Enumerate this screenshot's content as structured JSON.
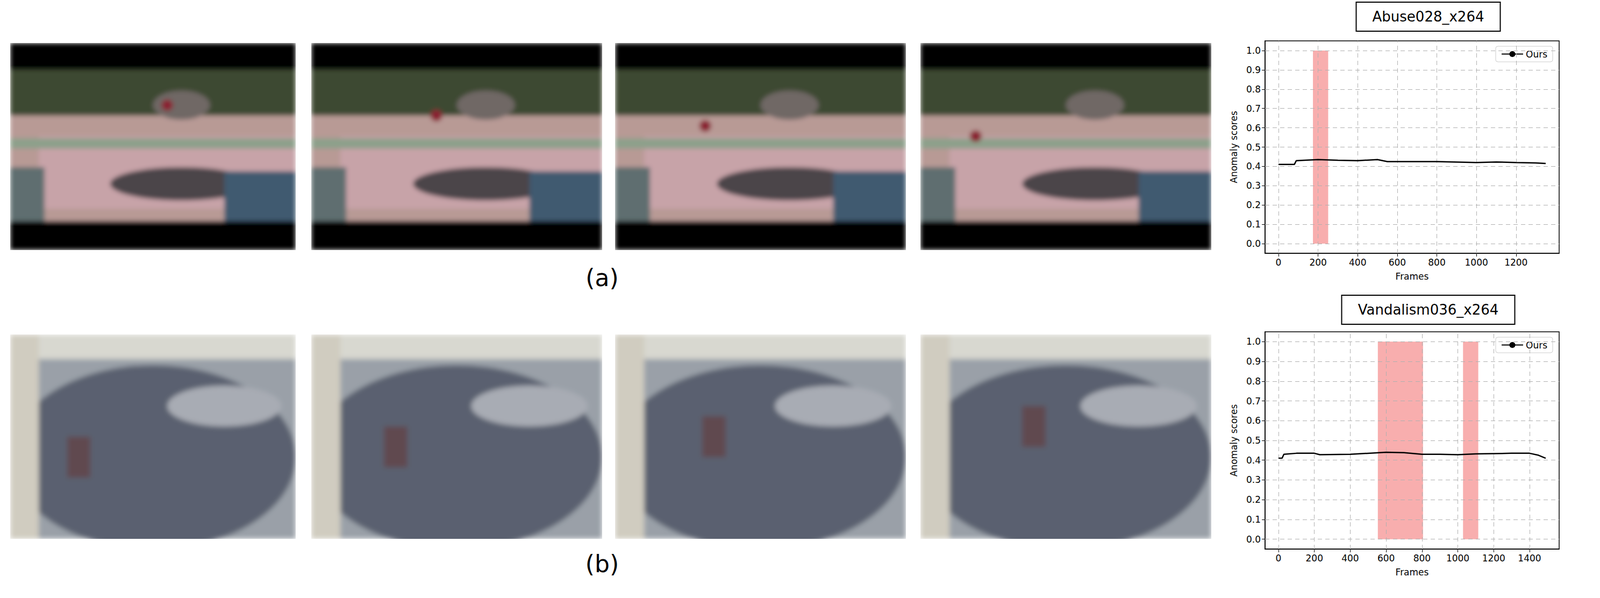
{
  "panel_labels": [
    "(a)",
    "(b)"
  ],
  "chart_data": [
    {
      "type": "line",
      "title": "Abuse028_x264",
      "x_label": "Frames",
      "y_label": "Anomaly scores",
      "x": [
        0,
        80,
        90,
        200,
        300,
        400,
        500,
        550,
        800,
        1000,
        1100,
        1200,
        1300,
        1350
      ],
      "series": [
        {
          "name": "Ours",
          "color": "#000000",
          "values": [
            0.41,
            0.41,
            0.43,
            0.435,
            0.432,
            0.43,
            0.435,
            0.425,
            0.425,
            0.42,
            0.423,
            0.42,
            0.418,
            0.415
          ]
        }
      ],
      "anomaly_intervals": [
        {
          "start": 174,
          "end": 251,
          "low": 0,
          "high": 1
        }
      ],
      "xlim": [
        -68,
        1418
      ],
      "xticks": [
        0,
        200,
        400,
        600,
        800,
        1000,
        1200
      ],
      "ylim": [
        -0.05,
        1.05
      ],
      "yticks": [
        {
          "value": 0,
          "label": "0.0"
        },
        0.1,
        0.2,
        0.3,
        0.4,
        0.5,
        0.6,
        0.7,
        0.8,
        0.9,
        {
          "value": 1,
          "label": "1.0"
        }
      ],
      "grid": true,
      "legend": "upper right"
    },
    {
      "type": "line",
      "title": "Vandalism036_x264",
      "x_label": "Frames",
      "y_label": "Anomaly scores",
      "x": [
        0,
        20,
        30,
        100,
        200,
        230,
        400,
        600,
        700,
        800,
        900,
        1000,
        1100,
        1300,
        1400,
        1450,
        1490
      ],
      "series": [
        {
          "name": "Ours",
          "color": "#000000",
          "values": [
            0.41,
            0.41,
            0.43,
            0.435,
            0.435,
            0.428,
            0.43,
            0.44,
            0.438,
            0.43,
            0.43,
            0.428,
            0.432,
            0.435,
            0.435,
            0.425,
            0.41
          ]
        }
      ],
      "anomaly_intervals": [
        {
          "start": 554,
          "end": 806,
          "low": 0,
          "high": 1
        },
        {
          "start": 1029,
          "end": 1114,
          "low": 0,
          "high": 1
        }
      ],
      "xlim": [
        -75,
        1565
      ],
      "xticks": [
        0,
        200,
        400,
        600,
        800,
        1000,
        1200,
        1400
      ],
      "ylim": [
        -0.05,
        1.05
      ],
      "yticks": [
        {
          "value": 0,
          "label": "0.0"
        },
        0.1,
        0.2,
        0.3,
        0.4,
        0.5,
        0.6,
        0.7,
        0.8,
        0.9,
        {
          "value": 1,
          "label": "1.0"
        }
      ],
      "grid": true,
      "legend": "upper right"
    }
  ]
}
